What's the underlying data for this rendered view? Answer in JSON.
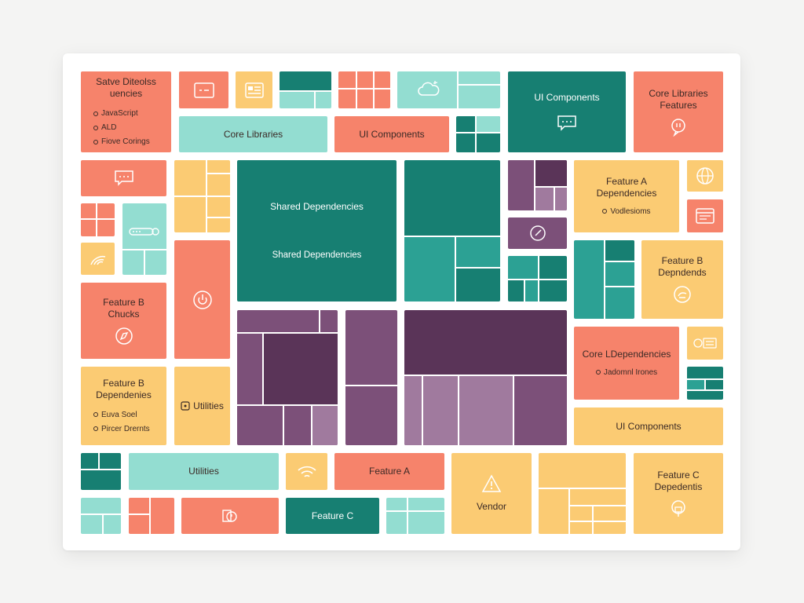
{
  "palette": {
    "coral": "#f6836b",
    "yellow": "#fbcb73",
    "mint": "#93ddd1",
    "teal": "#177f72",
    "plum": "#5a3458",
    "purple": "#7c5079",
    "lilac": "#a07a9e"
  },
  "tiles": {
    "save_deps": {
      "title1": "Satve Diteolss",
      "title2": "uencies",
      "items": [
        "JavaScript",
        "ALD",
        "Fiove Corings"
      ]
    },
    "ui_components_top": {
      "label": "UI Components",
      "icon": "chat-icon"
    },
    "core_lib_features": {
      "title1": "Core Libraries",
      "title2": "Features",
      "icon": "chat-icon"
    },
    "core_libraries": {
      "label": "Core Libraries"
    },
    "ui_components_mid": {
      "label": "UI Components"
    },
    "shared_deps": {
      "label1": "Shared Dependencies",
      "label2": "Shared Dependencies"
    },
    "feature_a_deps": {
      "title1": "Feature A",
      "title2": "Dependencies",
      "item": "Vodlesioms"
    },
    "feature_b_depends": {
      "title1": "Feature B",
      "title2": "Depndends",
      "icon": "hand-icon"
    },
    "feature_b_chucks": {
      "title1": "Feature B",
      "title2": "Chucks",
      "icon": "compass-icon"
    },
    "core_l_deps": {
      "title": "Core LDependencies",
      "item": "Jadomnl Irones"
    },
    "feature_b_deps": {
      "title1": "Feature B",
      "title2": "Dependenies",
      "items": [
        "Euva Soel",
        "Pircer Drernts"
      ]
    },
    "utilities_vertical": {
      "label": "Utilities",
      "icon": "square-icon"
    },
    "ui_components_low": {
      "label": "UI Components"
    },
    "utilities_bottom": {
      "label": "Utilities"
    },
    "feature_a_bottom": {
      "label": "Feature A"
    },
    "vendor": {
      "label": "Vendor",
      "icon": "warning-icon"
    },
    "feature_c_deps": {
      "title1": "Feature C",
      "title2": "Depedentis",
      "icon": "lock-icon"
    },
    "feature_c": {
      "label": "Feature C"
    }
  }
}
